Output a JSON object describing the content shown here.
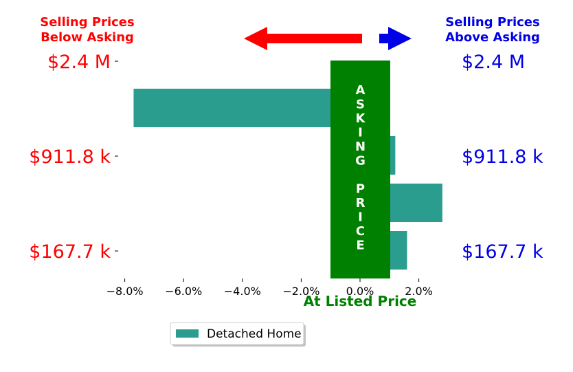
{
  "colors": {
    "below": "#ff0000",
    "above": "#0000e6",
    "bar": "#2a9d8f",
    "asking_band": "#008000",
    "at_listed": "#008000"
  },
  "header": {
    "left_line1": "Selling Prices",
    "left_line2": "Below Asking",
    "right_line1": "Selling Prices",
    "right_line2": "Above Asking"
  },
  "asking_band_text": "ASKING PRICE",
  "at_listed_label": "At Listed Price",
  "chart_data": {
    "type": "bar",
    "orientation": "horizontal",
    "xlabel": "At Listed Price",
    "xlim": [
      -8.0,
      2.0
    ],
    "x_ticks": [
      -8.0,
      -6.0,
      -4.0,
      -2.0,
      0.0,
      2.0
    ],
    "x_tick_labels": [
      "−8.0%",
      "−6.0%",
      "−4.0%",
      "−2.0%",
      "0.0%",
      "2.0%"
    ],
    "left_price_labels": [
      "$2.4 M",
      "$911.8 k",
      "$167.7 k"
    ],
    "right_price_labels": [
      "$2.4 M",
      "$911.8 k",
      "$167.7 k"
    ],
    "series": [
      {
        "name": "Detached Home",
        "values": [
          -7.7,
          1.2,
          2.8,
          1.6
        ]
      }
    ],
    "legend": "bottom-center"
  }
}
